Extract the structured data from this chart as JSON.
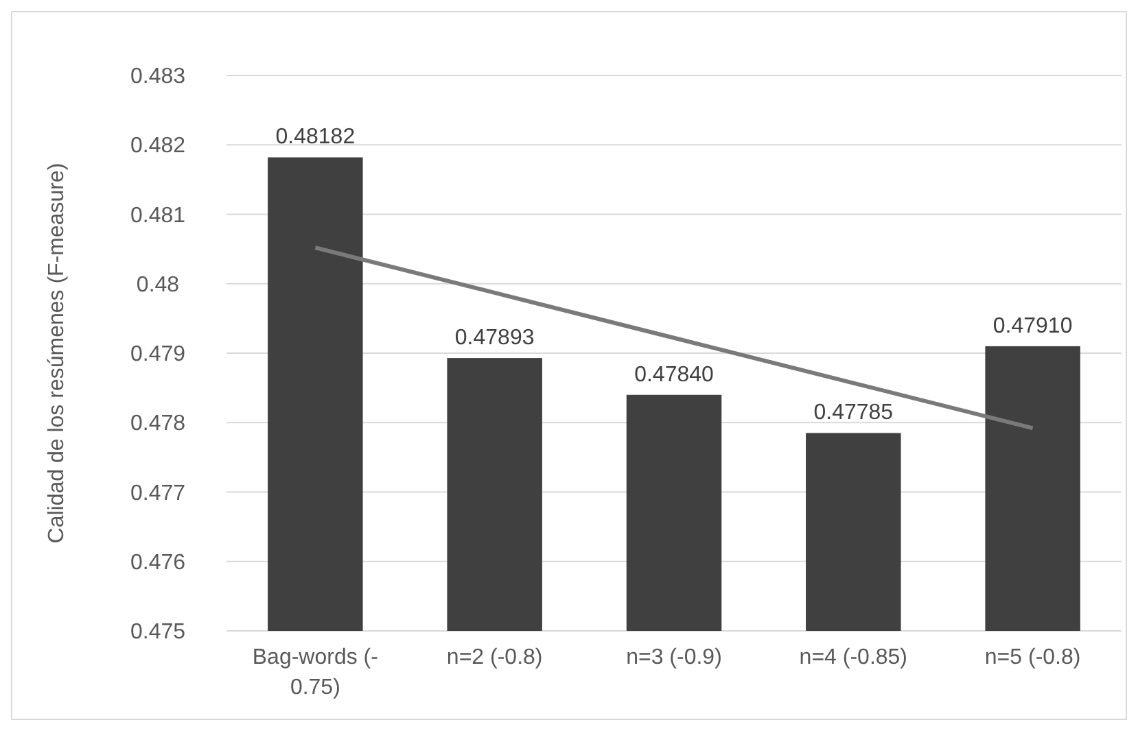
{
  "chart_data": {
    "type": "bar",
    "ylabel": "Calidad de los resúmenes (F-measure)",
    "categories": [
      "Bag-words  (- 0.75)",
      "n=2 (-0.8)",
      "n=3 (-0.9)",
      "n=4 (-0.85)",
      "n=5 (-0.8)"
    ],
    "series": [
      {
        "color": "#404040",
        "values": [
          0.48182,
          0.47893,
          0.4784,
          0.47785,
          0.4791
        ],
        "value_labels": [
          "0.48182",
          "0.47893",
          "0.47840",
          "0.47785",
          "0.47910"
        ]
      },
      {
        "type": "line",
        "color": "#7a7a7a",
        "values": [
          0.48052,
          0.47987,
          0.47922,
          0.47857,
          0.47792
        ]
      }
    ],
    "ylim": [
      0.475,
      0.483
    ],
    "yticks": [
      0.475,
      0.476,
      0.477,
      0.478,
      0.479,
      0.48,
      0.481,
      0.482,
      0.483
    ],
    "grid": "y"
  }
}
